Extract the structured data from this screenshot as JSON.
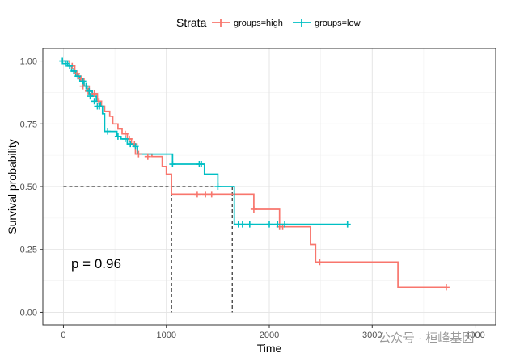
{
  "chart_data": {
    "type": "line",
    "subtype": "kaplan-meier",
    "xlabel": "Time",
    "ylabel": "Survival probability",
    "xlim": [
      -200,
      4200
    ],
    "ylim": [
      -0.05,
      1.05
    ],
    "x_ticks": [
      0,
      1000,
      2000,
      3000,
      4000
    ],
    "y_ticks": [
      0.0,
      0.25,
      0.5,
      0.75,
      1.0
    ],
    "x_tick_labels": [
      "0",
      "1000",
      "2000",
      "3000",
      "4000"
    ],
    "y_tick_labels": [
      "0.00",
      "0.25",
      "0.50",
      "0.75",
      "1.00"
    ],
    "grid": true,
    "legend": {
      "title": "Strata",
      "position": "top",
      "entries": [
        "groups=high",
        "groups=low"
      ]
    },
    "annotation": "p = 0.96",
    "median_lines": [
      {
        "series": "groups=high",
        "x": 1050,
        "y": 0.5
      },
      {
        "series": "groups=low",
        "x": 1640,
        "y": 0.5
      }
    ],
    "series": [
      {
        "name": "groups=high",
        "color": "#F8766D",
        "steps": [
          [
            0,
            1.0
          ],
          [
            60,
            0.98
          ],
          [
            110,
            0.95
          ],
          [
            150,
            0.93
          ],
          [
            200,
            0.9
          ],
          [
            250,
            0.88
          ],
          [
            280,
            0.87
          ],
          [
            330,
            0.84
          ],
          [
            370,
            0.82
          ],
          [
            400,
            0.8
          ],
          [
            450,
            0.78
          ],
          [
            480,
            0.75
          ],
          [
            530,
            0.73
          ],
          [
            570,
            0.71
          ],
          [
            620,
            0.69
          ],
          [
            660,
            0.67
          ],
          [
            700,
            0.63
          ],
          [
            860,
            0.62
          ],
          [
            960,
            0.58
          ],
          [
            1000,
            0.55
          ],
          [
            1050,
            0.47
          ],
          [
            1640,
            0.47
          ],
          [
            1850,
            0.41
          ],
          [
            2100,
            0.34
          ],
          [
            2280,
            0.34
          ],
          [
            2400,
            0.27
          ],
          [
            2450,
            0.2
          ],
          [
            3250,
            0.2
          ],
          [
            3250,
            0.1
          ],
          [
            3720,
            0.1
          ]
        ],
        "censor": [
          [
            85,
            0.98
          ],
          [
            130,
            0.95
          ],
          [
            170,
            0.93
          ],
          [
            190,
            0.9
          ],
          [
            240,
            0.88
          ],
          [
            300,
            0.87
          ],
          [
            345,
            0.84
          ],
          [
            600,
            0.71
          ],
          [
            640,
            0.69
          ],
          [
            690,
            0.67
          ],
          [
            730,
            0.63
          ],
          [
            820,
            0.62
          ],
          [
            1300,
            0.47
          ],
          [
            1380,
            0.47
          ],
          [
            1440,
            0.47
          ],
          [
            1850,
            0.41
          ],
          [
            2100,
            0.34
          ],
          [
            2130,
            0.34
          ],
          [
            2490,
            0.2
          ],
          [
            3720,
            0.1
          ]
        ]
      },
      {
        "name": "groups=low",
        "color": "#00BFC4",
        "steps": [
          [
            0,
            1.0
          ],
          [
            40,
            0.98
          ],
          [
            80,
            0.96
          ],
          [
            120,
            0.94
          ],
          [
            160,
            0.92
          ],
          [
            200,
            0.9
          ],
          [
            230,
            0.88
          ],
          [
            280,
            0.86
          ],
          [
            320,
            0.84
          ],
          [
            360,
            0.82
          ],
          [
            380,
            0.79
          ],
          [
            400,
            0.72
          ],
          [
            480,
            0.72
          ],
          [
            520,
            0.7
          ],
          [
            560,
            0.69
          ],
          [
            620,
            0.67
          ],
          [
            680,
            0.66
          ],
          [
            720,
            0.63
          ],
          [
            1050,
            0.63
          ],
          [
            1060,
            0.59
          ],
          [
            1340,
            0.59
          ],
          [
            1370,
            0.55
          ],
          [
            1460,
            0.55
          ],
          [
            1500,
            0.5
          ],
          [
            1640,
            0.5
          ],
          [
            1660,
            0.35
          ],
          [
            2760,
            0.35
          ]
        ],
        "censor": [
          [
            -10,
            1.0
          ],
          [
            20,
            0.99
          ],
          [
            60,
            0.98
          ],
          [
            100,
            0.96
          ],
          [
            140,
            0.94
          ],
          [
            190,
            0.92
          ],
          [
            220,
            0.9
          ],
          [
            250,
            0.88
          ],
          [
            260,
            0.86
          ],
          [
            300,
            0.84
          ],
          [
            330,
            0.82
          ],
          [
            350,
            0.82
          ],
          [
            430,
            0.72
          ],
          [
            530,
            0.7
          ],
          [
            600,
            0.69
          ],
          [
            650,
            0.67
          ],
          [
            700,
            0.66
          ],
          [
            1060,
            0.59
          ],
          [
            1320,
            0.59
          ],
          [
            1340,
            0.59
          ],
          [
            1500,
            0.5
          ],
          [
            1700,
            0.35
          ],
          [
            1740,
            0.35
          ],
          [
            1810,
            0.35
          ],
          [
            2000,
            0.35
          ],
          [
            2080,
            0.35
          ],
          [
            2150,
            0.35
          ],
          [
            2760,
            0.35
          ]
        ]
      }
    ],
    "watermark": "公众号 · 桓峰基因"
  }
}
